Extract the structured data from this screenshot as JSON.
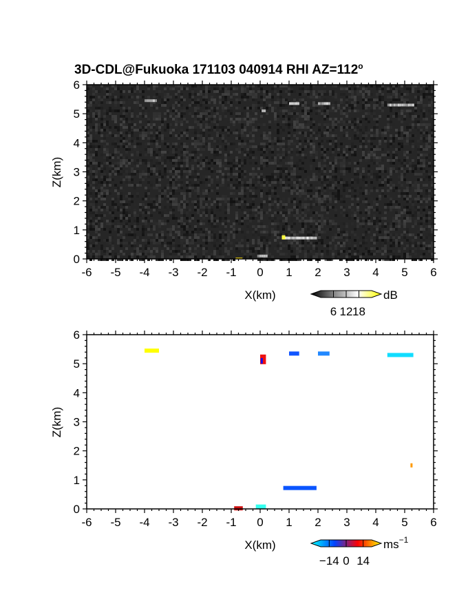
{
  "title": "3D-CDL@Fukuoka 171103 040914 RHI AZ=112",
  "title_sup": "o",
  "chart_data": [
    {
      "type": "heatmap",
      "name": "intensity",
      "xlabel": "X(km)",
      "ylabel": "Z(km)",
      "xlim": [
        -6,
        6
      ],
      "ylim": [
        0,
        6
      ],
      "x_ticks": [
        "-6",
        "-5",
        "-4",
        "-3",
        "-2",
        "-1",
        "0",
        "1",
        "2",
        "3",
        "4",
        "5",
        "6"
      ],
      "y_ticks": [
        "0",
        "1",
        "2",
        "3",
        "4",
        "5",
        "6"
      ],
      "background": "noise (dark gray, ~0-6 dB)",
      "colorbar": {
        "unit": "dB",
        "ticks": [
          "6",
          "12",
          "18"
        ],
        "range": [
          0,
          24
        ],
        "colors": [
          "#000000",
          "#ffffff",
          "#ffff00"
        ]
      },
      "features": [
        {
          "x": [
            -4.0,
            -3.6
          ],
          "z": 5.45,
          "value_db": 10
        },
        {
          "x": [
            0.05,
            0.15
          ],
          "z": 5.1,
          "value_db": 12
        },
        {
          "x": [
            1.0,
            1.35
          ],
          "z": 5.35,
          "value_db": 11
        },
        {
          "x": [
            2.0,
            2.4
          ],
          "z": 5.35,
          "value_db": 11
        },
        {
          "x": [
            4.4,
            5.3
          ],
          "z": 5.3,
          "value_db": 11
        },
        {
          "x": [
            0.75,
            1.9
          ],
          "z": 0.72,
          "value_db": 14,
          "peak_db": 22
        },
        {
          "x": [
            -0.1,
            0.25
          ],
          "z": 0.1,
          "value_db": 9
        }
      ]
    },
    {
      "type": "heatmap",
      "name": "doppler velocity",
      "xlabel": "X(km)",
      "ylabel": "Z(km)",
      "xlim": [
        -6,
        6
      ],
      "ylim": [
        0,
        6
      ],
      "x_ticks": [
        "-6",
        "-5",
        "-4",
        "-3",
        "-2",
        "-1",
        "0",
        "1",
        "2",
        "3",
        "4",
        "5",
        "6"
      ],
      "y_ticks": [
        "0",
        "1",
        "2",
        "3",
        "4",
        "5",
        "6"
      ],
      "colorbar": {
        "unit": "ms",
        "unit_sup": "−1",
        "ticks": [
          "−14",
          "0",
          "14"
        ],
        "range": [
          -21,
          21
        ],
        "colors": [
          "#00ffff",
          "#0044ff",
          "#ff0000",
          "#ffff00"
        ]
      },
      "features": [
        {
          "x": [
            -4.0,
            -3.5
          ],
          "z": 5.45,
          "velocity": 19,
          "color": "#ffff00"
        },
        {
          "x": [
            0.0,
            0.2
          ],
          "z": 5.15,
          "velocity": 2,
          "color": "#ee1111"
        },
        {
          "x": [
            0.02,
            0.08
          ],
          "z": 5.1,
          "velocity": -9,
          "color": "#1111ee"
        },
        {
          "x": [
            1.0,
            1.35
          ],
          "z": 5.35,
          "velocity": -10,
          "color": "#1155ff"
        },
        {
          "x": [
            2.0,
            2.4
          ],
          "z": 5.35,
          "velocity": -14,
          "color": "#2288ff"
        },
        {
          "x": [
            4.4,
            5.3
          ],
          "z": 5.3,
          "velocity": -17,
          "color": "#11ddff"
        },
        {
          "x": [
            0.8,
            1.95
          ],
          "z": 0.72,
          "velocity": -10,
          "color": "#0a55ff"
        },
        {
          "x": [
            5.2,
            5.25
          ],
          "z": 1.5,
          "velocity": 15,
          "color": "#ff9900"
        },
        {
          "x": [
            -0.15,
            0.2
          ],
          "z": 0.08,
          "velocity": -18,
          "color": "#33ffee"
        },
        {
          "x": [
            -0.9,
            -0.6
          ],
          "z": 0.02,
          "velocity": 0,
          "color": "#cc1111"
        }
      ]
    }
  ]
}
